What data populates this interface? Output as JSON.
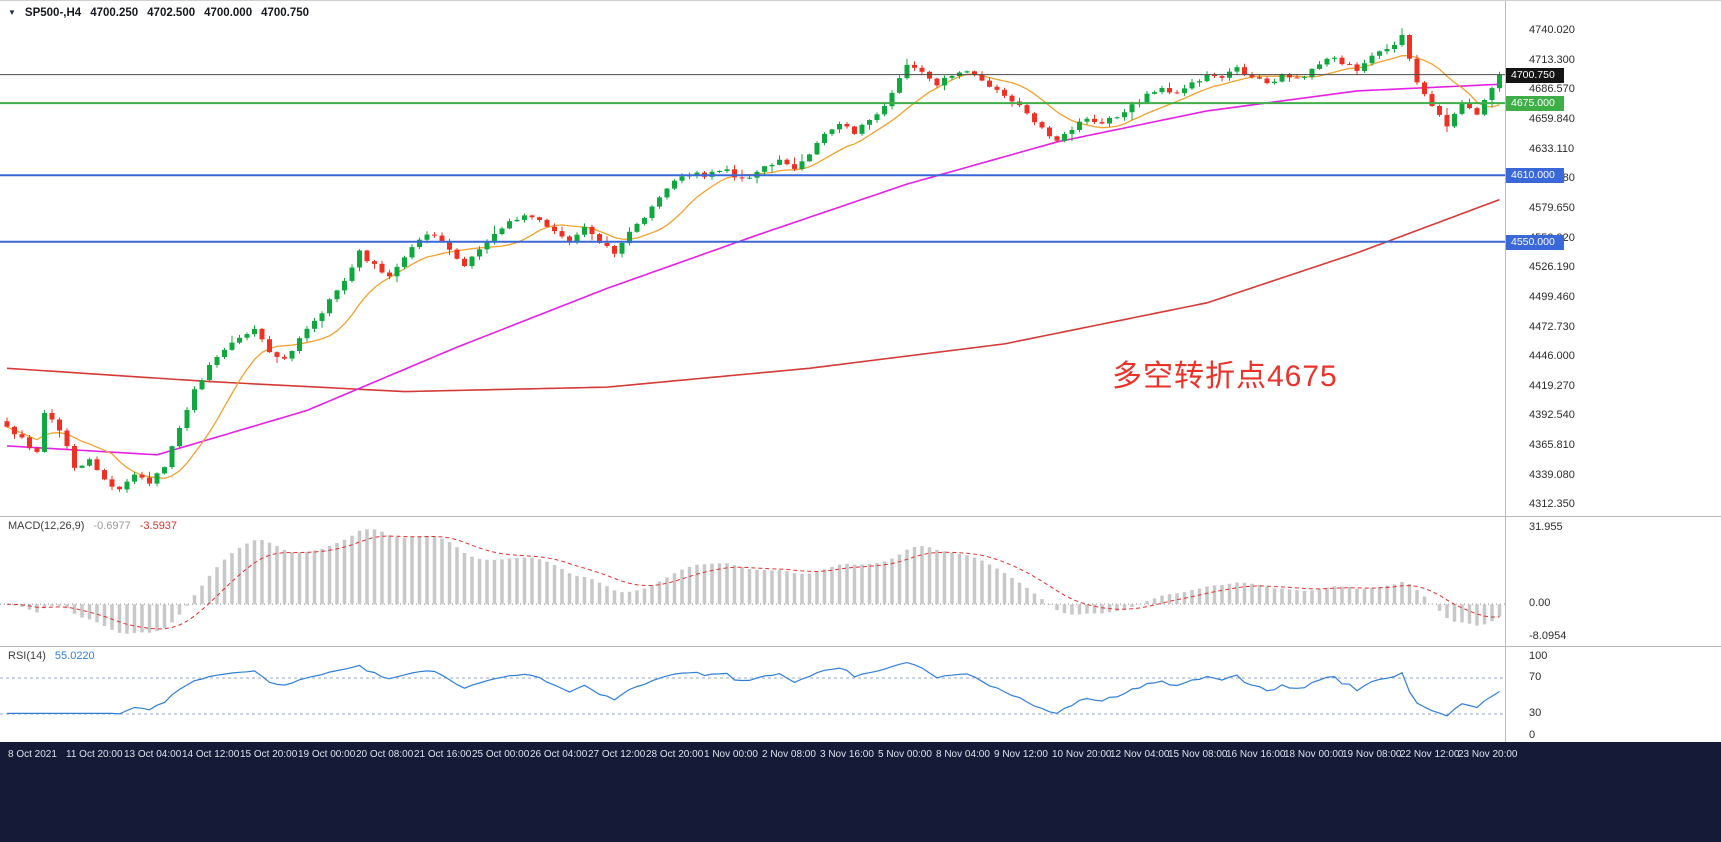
{
  "window": {
    "bg": "#ffffff",
    "footer_bg": "#151a36",
    "separator_color": "#b9b9b9"
  },
  "header": {
    "marker": "▼",
    "symbol": "SP500-,H4",
    "open": "4700.250",
    "high": "4702.500",
    "low": "4700.000",
    "close": "4700.750"
  },
  "annotation": {
    "text": "多空转折点4675",
    "color": "#e8322a"
  },
  "price_axis": {
    "ticks": [
      "4740.020",
      "4713.300",
      "4686.570",
      "4659.840",
      "4633.110",
      "4606.380",
      "4579.650",
      "4552.920",
      "4526.190",
      "4499.460",
      "4472.730",
      "4446.000",
      "4419.270",
      "4392.540",
      "4365.810",
      "4339.080",
      "4312.350"
    ],
    "badges": [
      {
        "label": "4700.750",
        "price": 4700.75,
        "bg": "#141414",
        "kind": "current-price"
      },
      {
        "label": "4675.000",
        "price": 4675.0,
        "bg": "#3fae49",
        "kind": "hline"
      },
      {
        "label": "4610.000",
        "price": 4610.0,
        "bg": "#3a68d8",
        "kind": "hline"
      },
      {
        "label": "4550.000",
        "price": 4550.0,
        "bg": "#3a68d8",
        "kind": "hline"
      }
    ]
  },
  "indicators": {
    "macd": {
      "label": "MACD(12,26,9)",
      "value_main": "-0.6977",
      "value_signal": "-3.5937",
      "axis_max": "31.955",
      "axis_zero": "0.00",
      "axis_min": "-8.0954",
      "params": [
        12,
        26,
        9
      ]
    },
    "rsi": {
      "label": "RSI(14)",
      "value": "55.0220",
      "axis": [
        "100",
        "70",
        "30",
        "0"
      ],
      "levels": [
        70,
        30
      ],
      "period": 14
    }
  },
  "time_axis": {
    "labels": [
      "8 Oct 2021",
      "11 Oct 20:00",
      "13 Oct 04:00",
      "14 Oct 12:00",
      "15 Oct 20:00",
      "19 Oct 00:00",
      "20 Oct 08:00",
      "21 Oct 16:00",
      "25 Oct 00:00",
      "26 Oct 04:00",
      "27 Oct 12:00",
      "28 Oct 20:00",
      "1 Nov 00:00",
      "2 Nov 08:00",
      "3 Nov 16:00",
      "5 Nov 00:00",
      "8 Nov 04:00",
      "9 Nov 12:00",
      "10 Nov 20:00",
      "12 Nov 04:00",
      "15 Nov 08:00",
      "16 Nov 16:00",
      "18 Nov 00:00",
      "19 Nov 08:00",
      "22 Nov 12:00",
      "23 Nov 20:00"
    ]
  },
  "chart_data": {
    "type": "candlestick",
    "symbol": "SP500-",
    "timeframe": "H4",
    "title": "SP500- H4 with MACD(12,26,9) and RSI(14)",
    "bars": 200,
    "price_range": [
      4312.35,
      4740.02
    ],
    "current_price": 4700.75,
    "spike_high": [
      186,
      4742.5
    ],
    "close_anchors": [
      [
        0,
        4383
      ],
      [
        2,
        4372
      ],
      [
        4,
        4360
      ],
      [
        5,
        4396
      ],
      [
        7,
        4382
      ],
      [
        9,
        4345
      ],
      [
        11,
        4352
      ],
      [
        13,
        4337
      ],
      [
        15,
        4326
      ],
      [
        17,
        4342
      ],
      [
        19,
        4331
      ],
      [
        21,
        4348
      ],
      [
        23,
        4382
      ],
      [
        25,
        4415
      ],
      [
        27,
        4440
      ],
      [
        29,
        4452
      ],
      [
        31,
        4462
      ],
      [
        33,
        4470
      ],
      [
        35,
        4452
      ],
      [
        37,
        4443
      ],
      [
        39,
        4465
      ],
      [
        41,
        4480
      ],
      [
        43,
        4496
      ],
      [
        45,
        4515
      ],
      [
        47,
        4541
      ],
      [
        49,
        4528
      ],
      [
        51,
        4517
      ],
      [
        53,
        4536
      ],
      [
        55,
        4551
      ],
      [
        57,
        4558
      ],
      [
        59,
        4542
      ],
      [
        61,
        4529
      ],
      [
        63,
        4545
      ],
      [
        65,
        4558
      ],
      [
        67,
        4568
      ],
      [
        69,
        4576
      ],
      [
        71,
        4570
      ],
      [
        73,
        4561
      ],
      [
        75,
        4549
      ],
      [
        77,
        4561
      ],
      [
        79,
        4549
      ],
      [
        81,
        4541
      ],
      [
        83,
        4557
      ],
      [
        85,
        4573
      ],
      [
        87,
        4591
      ],
      [
        89,
        4605
      ],
      [
        91,
        4612
      ],
      [
        93,
        4608
      ],
      [
        95,
        4616
      ],
      [
        97,
        4610
      ],
      [
        99,
        4606
      ],
      [
        101,
        4616
      ],
      [
        103,
        4625
      ],
      [
        105,
        4618
      ],
      [
        107,
        4629
      ],
      [
        109,
        4648
      ],
      [
        111,
        4656
      ],
      [
        113,
        4649
      ],
      [
        115,
        4661
      ],
      [
        117,
        4673
      ],
      [
        119,
        4696
      ],
      [
        120,
        4711
      ],
      [
        122,
        4701
      ],
      [
        124,
        4692
      ],
      [
        126,
        4699
      ],
      [
        128,
        4706
      ],
      [
        130,
        4696
      ],
      [
        132,
        4686
      ],
      [
        134,
        4676
      ],
      [
        136,
        4666
      ],
      [
        138,
        4651
      ],
      [
        140,
        4639
      ],
      [
        142,
        4651
      ],
      [
        144,
        4661
      ],
      [
        146,
        4656
      ],
      [
        148,
        4663
      ],
      [
        150,
        4673
      ],
      [
        152,
        4681
      ],
      [
        154,
        4689
      ],
      [
        156,
        4683
      ],
      [
        158,
        4693
      ],
      [
        160,
        4701
      ],
      [
        162,
        4696
      ],
      [
        164,
        4706
      ],
      [
        166,
        4699
      ],
      [
        168,
        4691
      ],
      [
        170,
        4701
      ],
      [
        172,
        4696
      ],
      [
        174,
        4706
      ],
      [
        176,
        4716
      ],
      [
        178,
        4711
      ],
      [
        180,
        4706
      ],
      [
        182,
        4716
      ],
      [
        184,
        4723
      ],
      [
        186,
        4736
      ],
      [
        187,
        4713
      ],
      [
        188,
        4696
      ],
      [
        190,
        4671
      ],
      [
        192,
        4656
      ],
      [
        194,
        4676
      ],
      [
        196,
        4666
      ],
      [
        198,
        4691
      ],
      [
        199,
        4700.75
      ]
    ],
    "ma_fast_period": 10,
    "ma_mid_anchors": [
      [
        0,
        4366
      ],
      [
        20,
        4358
      ],
      [
        40,
        4398
      ],
      [
        60,
        4455
      ],
      [
        80,
        4508
      ],
      [
        100,
        4556
      ],
      [
        120,
        4602
      ],
      [
        140,
        4640
      ],
      [
        160,
        4668
      ],
      [
        180,
        4686
      ],
      [
        199,
        4692
      ]
    ],
    "ma_slow_anchors": [
      [
        0,
        4436
      ],
      [
        27,
        4424
      ],
      [
        53,
        4415
      ],
      [
        80,
        4419
      ],
      [
        107,
        4436
      ],
      [
        133,
        4458
      ],
      [
        160,
        4495
      ],
      [
        180,
        4540
      ],
      [
        199,
        4588
      ]
    ],
    "hlines": [
      {
        "price": 4675.0,
        "color": "#3fae49",
        "width": 2
      },
      {
        "price": 4610.0,
        "color": "#3a68d8",
        "width": 2
      },
      {
        "price": 4550.0,
        "color": "#3a68d8",
        "width": 2
      }
    ],
    "colors": {
      "up": "#0fa83f",
      "down": "#ef3124",
      "ma_fast": "#f0a22e",
      "ma_mid": "#e520e5",
      "ma_slow": "#d43a36",
      "price_line": "#4a4a4a",
      "macd_hist": "#c8c8c8",
      "macd_signal": "#e03030",
      "rsi": "#2f7ed8",
      "rsi_levels": "#9aa7c7"
    }
  }
}
